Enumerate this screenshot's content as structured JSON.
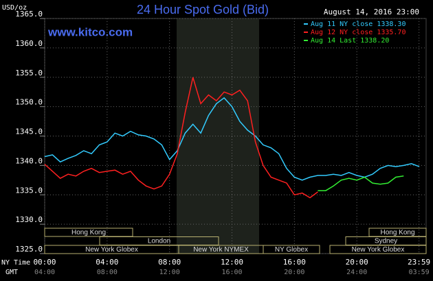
{
  "chart_data": {
    "type": "line",
    "title": "24 Hour Spot Gold (Bid)",
    "subtitle": "August 14, 2016 23:00",
    "annotation": "www.kitco.com",
    "ylabel": "USD/oz",
    "xlabel": "NY Time",
    "x2label": "GMT",
    "xlim": [
      0,
      24
    ],
    "ylim": [
      1325,
      1365
    ],
    "xticks": [
      {
        "value": 0,
        "label": "00:00"
      },
      {
        "value": 4,
        "label": "04:00"
      },
      {
        "value": 8,
        "label": "08:00"
      },
      {
        "value": 12,
        "label": "12:00"
      },
      {
        "value": 16,
        "label": "16:00"
      },
      {
        "value": 20,
        "label": "20:00"
      },
      {
        "value": 23.983,
        "label": "23:59"
      }
    ],
    "x2tick_labels": [
      "04:00",
      "08:00",
      "12:00",
      "16:00",
      "20:00",
      "24:00",
      "03:59"
    ],
    "yticks": [
      {
        "value": 1325,
        "label": "1325.0"
      },
      {
        "value": 1330,
        "label": "1330.0"
      },
      {
        "value": 1335,
        "label": "1335.0"
      },
      {
        "value": 1340,
        "label": "1340.0"
      },
      {
        "value": 1345,
        "label": "1345.0"
      },
      {
        "value": 1350,
        "label": "1350.0"
      },
      {
        "value": 1355,
        "label": "1355.0"
      },
      {
        "value": 1360,
        "label": "1360.0"
      },
      {
        "value": 1365,
        "label": "1365.0"
      }
    ],
    "grid": true,
    "legend": "top-right",
    "sessions": [
      "Hong Kong",
      "London",
      "New York Globex",
      "New York NYMEX",
      "NY Globex",
      "Hong Kong",
      "Sydney",
      "New York Globex"
    ],
    "series": [
      {
        "name": "Aug 11 NY close 1338.30",
        "color": "#33ccff",
        "x": [
          0,
          0.5,
          1,
          1.5,
          2,
          2.5,
          3,
          3.5,
          4,
          4.5,
          5,
          5.5,
          6,
          6.5,
          7,
          7.5,
          8,
          8.5,
          9,
          9.5,
          10,
          10.5,
          11,
          11.5,
          12,
          12.5,
          13,
          13.5,
          14,
          14.5,
          15,
          15.5,
          16,
          16.5,
          17,
          17.5,
          18,
          18.5,
          19,
          19.5,
          20,
          20.5,
          21,
          21.5,
          22,
          22.5,
          23,
          23.5,
          24
        ],
        "values": [
          1341.5,
          1341.8,
          1340.6,
          1341.2,
          1341.7,
          1342.5,
          1342.0,
          1343.5,
          1344.0,
          1345.5,
          1345.0,
          1345.8,
          1345.2,
          1345.0,
          1344.5,
          1343.5,
          1341.0,
          1342.5,
          1345.5,
          1347.0,
          1345.5,
          1348.5,
          1350.5,
          1351.5,
          1350.0,
          1347.5,
          1346.0,
          1345.0,
          1343.5,
          1343.0,
          1342.0,
          1339.5,
          1338.0,
          1337.5,
          1338.0,
          1338.3,
          1338.3,
          1338.5,
          1338.3,
          1338.8,
          1338.3,
          1338.0,
          1338.5,
          1339.5,
          1340.0,
          1339.8,
          1340.0,
          1340.3,
          1339.8
        ]
      },
      {
        "name": "Aug 12 NY close 1335.70",
        "color": "#ff2020",
        "x": [
          0,
          0.5,
          1,
          1.5,
          2,
          2.5,
          3,
          3.5,
          4,
          4.5,
          5,
          5.5,
          6,
          6.5,
          7,
          7.5,
          8,
          8.5,
          9,
          9.5,
          10,
          10.5,
          11,
          11.5,
          12,
          12.5,
          13,
          13.5,
          14,
          14.5,
          15,
          15.5,
          16,
          16.5,
          17,
          17.5
        ],
        "values": [
          1340.2,
          1339.0,
          1337.8,
          1338.5,
          1338.2,
          1339.0,
          1339.5,
          1338.8,
          1339.0,
          1339.2,
          1338.5,
          1339.0,
          1337.5,
          1336.5,
          1336.0,
          1336.5,
          1338.5,
          1342.0,
          1349.0,
          1355.0,
          1350.5,
          1352.0,
          1351.0,
          1352.5,
          1352.0,
          1352.8,
          1351.0,
          1344.0,
          1340.0,
          1338.0,
          1337.5,
          1337.0,
          1335.0,
          1335.3,
          1334.5,
          1335.5
        ]
      },
      {
        "name": "Aug 14 Last 1338.20",
        "color": "#33ee33",
        "x": [
          17.5,
          18,
          18.5,
          19,
          19.5,
          20,
          20.5,
          21,
          21.5,
          22,
          22.5,
          23
        ],
        "values": [
          1335.7,
          1335.7,
          1336.5,
          1337.5,
          1337.8,
          1337.5,
          1338.0,
          1337.0,
          1336.8,
          1337.0,
          1338.0,
          1338.2
        ]
      }
    ]
  }
}
